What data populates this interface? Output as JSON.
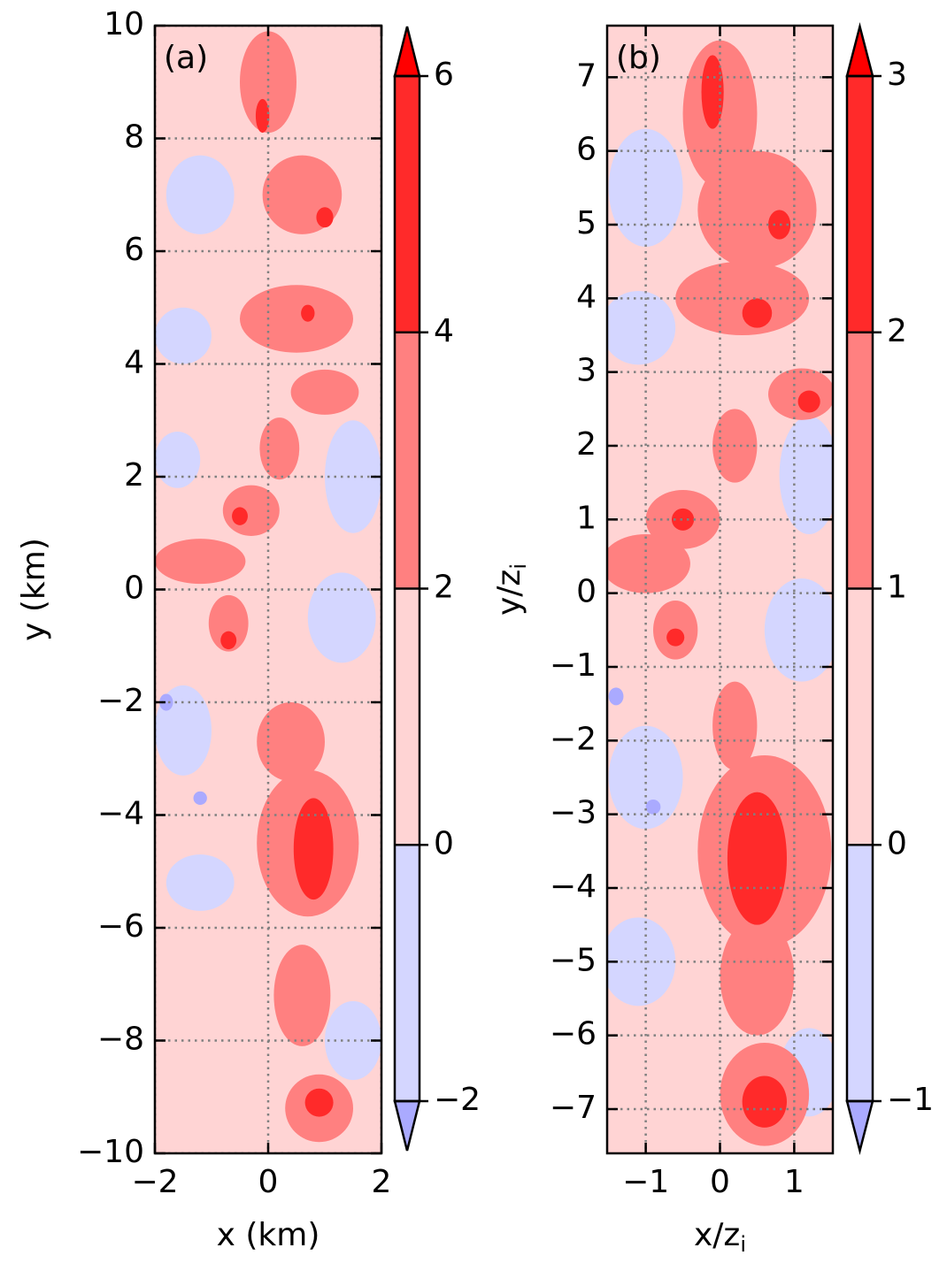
{
  "chart_data": [
    {
      "type": "heatmap",
      "panel_label": "(a)",
      "xlabel": "x (km)",
      "ylabel": "y (km)",
      "xlim": [
        -2,
        2
      ],
      "ylim": [
        -10,
        10
      ],
      "xticks": [
        -2,
        0,
        2
      ],
      "yticks": [
        -10,
        -8,
        -6,
        -4,
        -2,
        0,
        2,
        4,
        6,
        8,
        10
      ],
      "grid": true,
      "colorbar": {
        "levels": [
          -2,
          0,
          2,
          4,
          6
        ],
        "extend": "both",
        "colors": [
          "#d4d6ff",
          "#ffd4d4",
          "#ff8080",
          "#ff2a2a"
        ],
        "under_color": "#aaaaff",
        "over_color": "#ff0000"
      },
      "features": [
        {
          "x": 0.0,
          "y": 9.0,
          "rx": 0.5,
          "ry": 0.9,
          "level": 2
        },
        {
          "x": -0.1,
          "y": 8.4,
          "rx": 0.12,
          "ry": 0.3,
          "level": 4
        },
        {
          "x": 0.6,
          "y": 7.0,
          "rx": 0.7,
          "ry": 0.7,
          "level": 2
        },
        {
          "x": 1.0,
          "y": 6.6,
          "rx": 0.15,
          "ry": 0.18,
          "level": 4
        },
        {
          "x": 0.5,
          "y": 4.8,
          "rx": 1.0,
          "ry": 0.6,
          "level": 2
        },
        {
          "x": 0.7,
          "y": 4.9,
          "rx": 0.12,
          "ry": 0.15,
          "level": 4
        },
        {
          "x": 1.0,
          "y": 3.5,
          "rx": 0.6,
          "ry": 0.4,
          "level": 2
        },
        {
          "x": 0.2,
          "y": 2.5,
          "rx": 0.35,
          "ry": 0.55,
          "level": 2
        },
        {
          "x": -0.3,
          "y": 1.4,
          "rx": 0.5,
          "ry": 0.45,
          "level": 2
        },
        {
          "x": -0.5,
          "y": 1.3,
          "rx": 0.14,
          "ry": 0.16,
          "level": 4
        },
        {
          "x": -1.2,
          "y": 0.5,
          "rx": 0.8,
          "ry": 0.4,
          "level": 2
        },
        {
          "x": -0.7,
          "y": -0.6,
          "rx": 0.35,
          "ry": 0.5,
          "level": 2
        },
        {
          "x": -0.7,
          "y": -0.9,
          "rx": 0.14,
          "ry": 0.16,
          "level": 4
        },
        {
          "x": 0.4,
          "y": -2.7,
          "rx": 0.6,
          "ry": 0.7,
          "level": 2
        },
        {
          "x": 0.7,
          "y": -4.5,
          "rx": 0.9,
          "ry": 1.3,
          "level": 2
        },
        {
          "x": 0.8,
          "y": -4.6,
          "rx": 0.35,
          "ry": 0.9,
          "level": 4
        },
        {
          "x": 0.6,
          "y": -7.2,
          "rx": 0.5,
          "ry": 0.9,
          "level": 2
        },
        {
          "x": 0.9,
          "y": -9.2,
          "rx": 0.6,
          "ry": 0.6,
          "level": 2
        },
        {
          "x": 0.9,
          "y": -9.1,
          "rx": 0.25,
          "ry": 0.25,
          "level": 4
        },
        {
          "x": -1.2,
          "y": 7.0,
          "rx": 0.6,
          "ry": 0.7,
          "level": 0
        },
        {
          "x": -1.5,
          "y": 4.5,
          "rx": 0.5,
          "ry": 0.5,
          "level": 0
        },
        {
          "x": 1.5,
          "y": 2.0,
          "rx": 0.5,
          "ry": 1.0,
          "level": 0
        },
        {
          "x": -1.6,
          "y": 2.3,
          "rx": 0.4,
          "ry": 0.5,
          "level": 0
        },
        {
          "x": 1.3,
          "y": -0.5,
          "rx": 0.6,
          "ry": 0.8,
          "level": 0
        },
        {
          "x": -1.5,
          "y": -2.5,
          "rx": 0.5,
          "ry": 0.8,
          "level": 0
        },
        {
          "x": -1.2,
          "y": -5.2,
          "rx": 0.6,
          "ry": 0.5,
          "level": 0
        },
        {
          "x": 1.5,
          "y": -8.0,
          "rx": 0.5,
          "ry": 0.7,
          "level": 0
        },
        {
          "x": -1.8,
          "y": -2.0,
          "rx": 0.12,
          "ry": 0.15,
          "level": -2
        },
        {
          "x": -1.2,
          "y": -3.7,
          "rx": 0.12,
          "ry": 0.12,
          "level": -2
        }
      ]
    },
    {
      "type": "heatmap",
      "panel_label": "(b)",
      "xlabel": "x/z",
      "xlabel_sub": "i",
      "ylabel": "y/z",
      "ylabel_sub": "i",
      "xlim": [
        -1.52,
        1.52
      ],
      "ylim": [
        -7.6,
        7.7
      ],
      "xticks": [
        -1,
        0,
        1
      ],
      "yticks": [
        -7,
        -6,
        -5,
        -4,
        -3,
        -2,
        -1,
        0,
        1,
        2,
        3,
        4,
        5,
        6,
        7
      ],
      "grid": true,
      "colorbar": {
        "levels": [
          -1,
          0,
          1,
          2,
          3
        ],
        "extend": "both",
        "colors": [
          "#d4d6ff",
          "#ffd4d4",
          "#ff8080",
          "#ff2a2a"
        ],
        "under_color": "#aaaaff",
        "over_color": "#ff0000"
      },
      "features": [
        {
          "x": 0.0,
          "y": 6.5,
          "rx": 0.5,
          "ry": 1.0,
          "level": 1
        },
        {
          "x": -0.1,
          "y": 6.8,
          "rx": 0.15,
          "ry": 0.5,
          "level": 2
        },
        {
          "x": 0.5,
          "y": 5.2,
          "rx": 0.8,
          "ry": 0.8,
          "level": 1
        },
        {
          "x": 0.8,
          "y": 5.0,
          "rx": 0.15,
          "ry": 0.2,
          "level": 2
        },
        {
          "x": 0.3,
          "y": 4.0,
          "rx": 0.9,
          "ry": 0.5,
          "level": 1
        },
        {
          "x": 0.5,
          "y": 3.8,
          "rx": 0.2,
          "ry": 0.2,
          "level": 2
        },
        {
          "x": 1.1,
          "y": 2.7,
          "rx": 0.45,
          "ry": 0.35,
          "level": 1
        },
        {
          "x": 1.2,
          "y": 2.6,
          "rx": 0.15,
          "ry": 0.15,
          "level": 2
        },
        {
          "x": 0.2,
          "y": 2.0,
          "rx": 0.3,
          "ry": 0.5,
          "level": 1
        },
        {
          "x": -0.5,
          "y": 1.0,
          "rx": 0.5,
          "ry": 0.4,
          "level": 1
        },
        {
          "x": -0.5,
          "y": 1.0,
          "rx": 0.15,
          "ry": 0.15,
          "level": 2
        },
        {
          "x": -1.0,
          "y": 0.4,
          "rx": 0.6,
          "ry": 0.4,
          "level": 1
        },
        {
          "x": -0.6,
          "y": -0.5,
          "rx": 0.3,
          "ry": 0.4,
          "level": 1
        },
        {
          "x": -0.6,
          "y": -0.6,
          "rx": 0.12,
          "ry": 0.12,
          "level": 2
        },
        {
          "x": 0.2,
          "y": -1.8,
          "rx": 0.3,
          "ry": 0.6,
          "level": 1
        },
        {
          "x": 0.6,
          "y": -3.5,
          "rx": 0.9,
          "ry": 1.3,
          "level": 1
        },
        {
          "x": 0.5,
          "y": -3.6,
          "rx": 0.4,
          "ry": 0.9,
          "level": 2
        },
        {
          "x": 0.5,
          "y": -5.2,
          "rx": 0.5,
          "ry": 0.8,
          "level": 1
        },
        {
          "x": 0.6,
          "y": -6.8,
          "rx": 0.6,
          "ry": 0.7,
          "level": 1
        },
        {
          "x": 0.6,
          "y": -6.9,
          "rx": 0.3,
          "ry": 0.35,
          "level": 2
        },
        {
          "x": -1.0,
          "y": 5.5,
          "rx": 0.5,
          "ry": 0.8,
          "level": 0
        },
        {
          "x": -1.1,
          "y": 3.6,
          "rx": 0.5,
          "ry": 0.5,
          "level": 0
        },
        {
          "x": 1.2,
          "y": 1.6,
          "rx": 0.4,
          "ry": 0.8,
          "level": 0
        },
        {
          "x": 1.1,
          "y": -0.5,
          "rx": 0.5,
          "ry": 0.7,
          "level": 0
        },
        {
          "x": -1.0,
          "y": -2.5,
          "rx": 0.5,
          "ry": 0.7,
          "level": 0
        },
        {
          "x": -1.1,
          "y": -5.0,
          "rx": 0.5,
          "ry": 0.6,
          "level": 0
        },
        {
          "x": 1.2,
          "y": -6.5,
          "rx": 0.4,
          "ry": 0.6,
          "level": 0
        },
        {
          "x": -1.4,
          "y": -1.4,
          "rx": 0.1,
          "ry": 0.12,
          "level": -1
        },
        {
          "x": -0.9,
          "y": -2.9,
          "rx": 0.1,
          "ry": 0.1,
          "level": -1
        }
      ]
    }
  ]
}
